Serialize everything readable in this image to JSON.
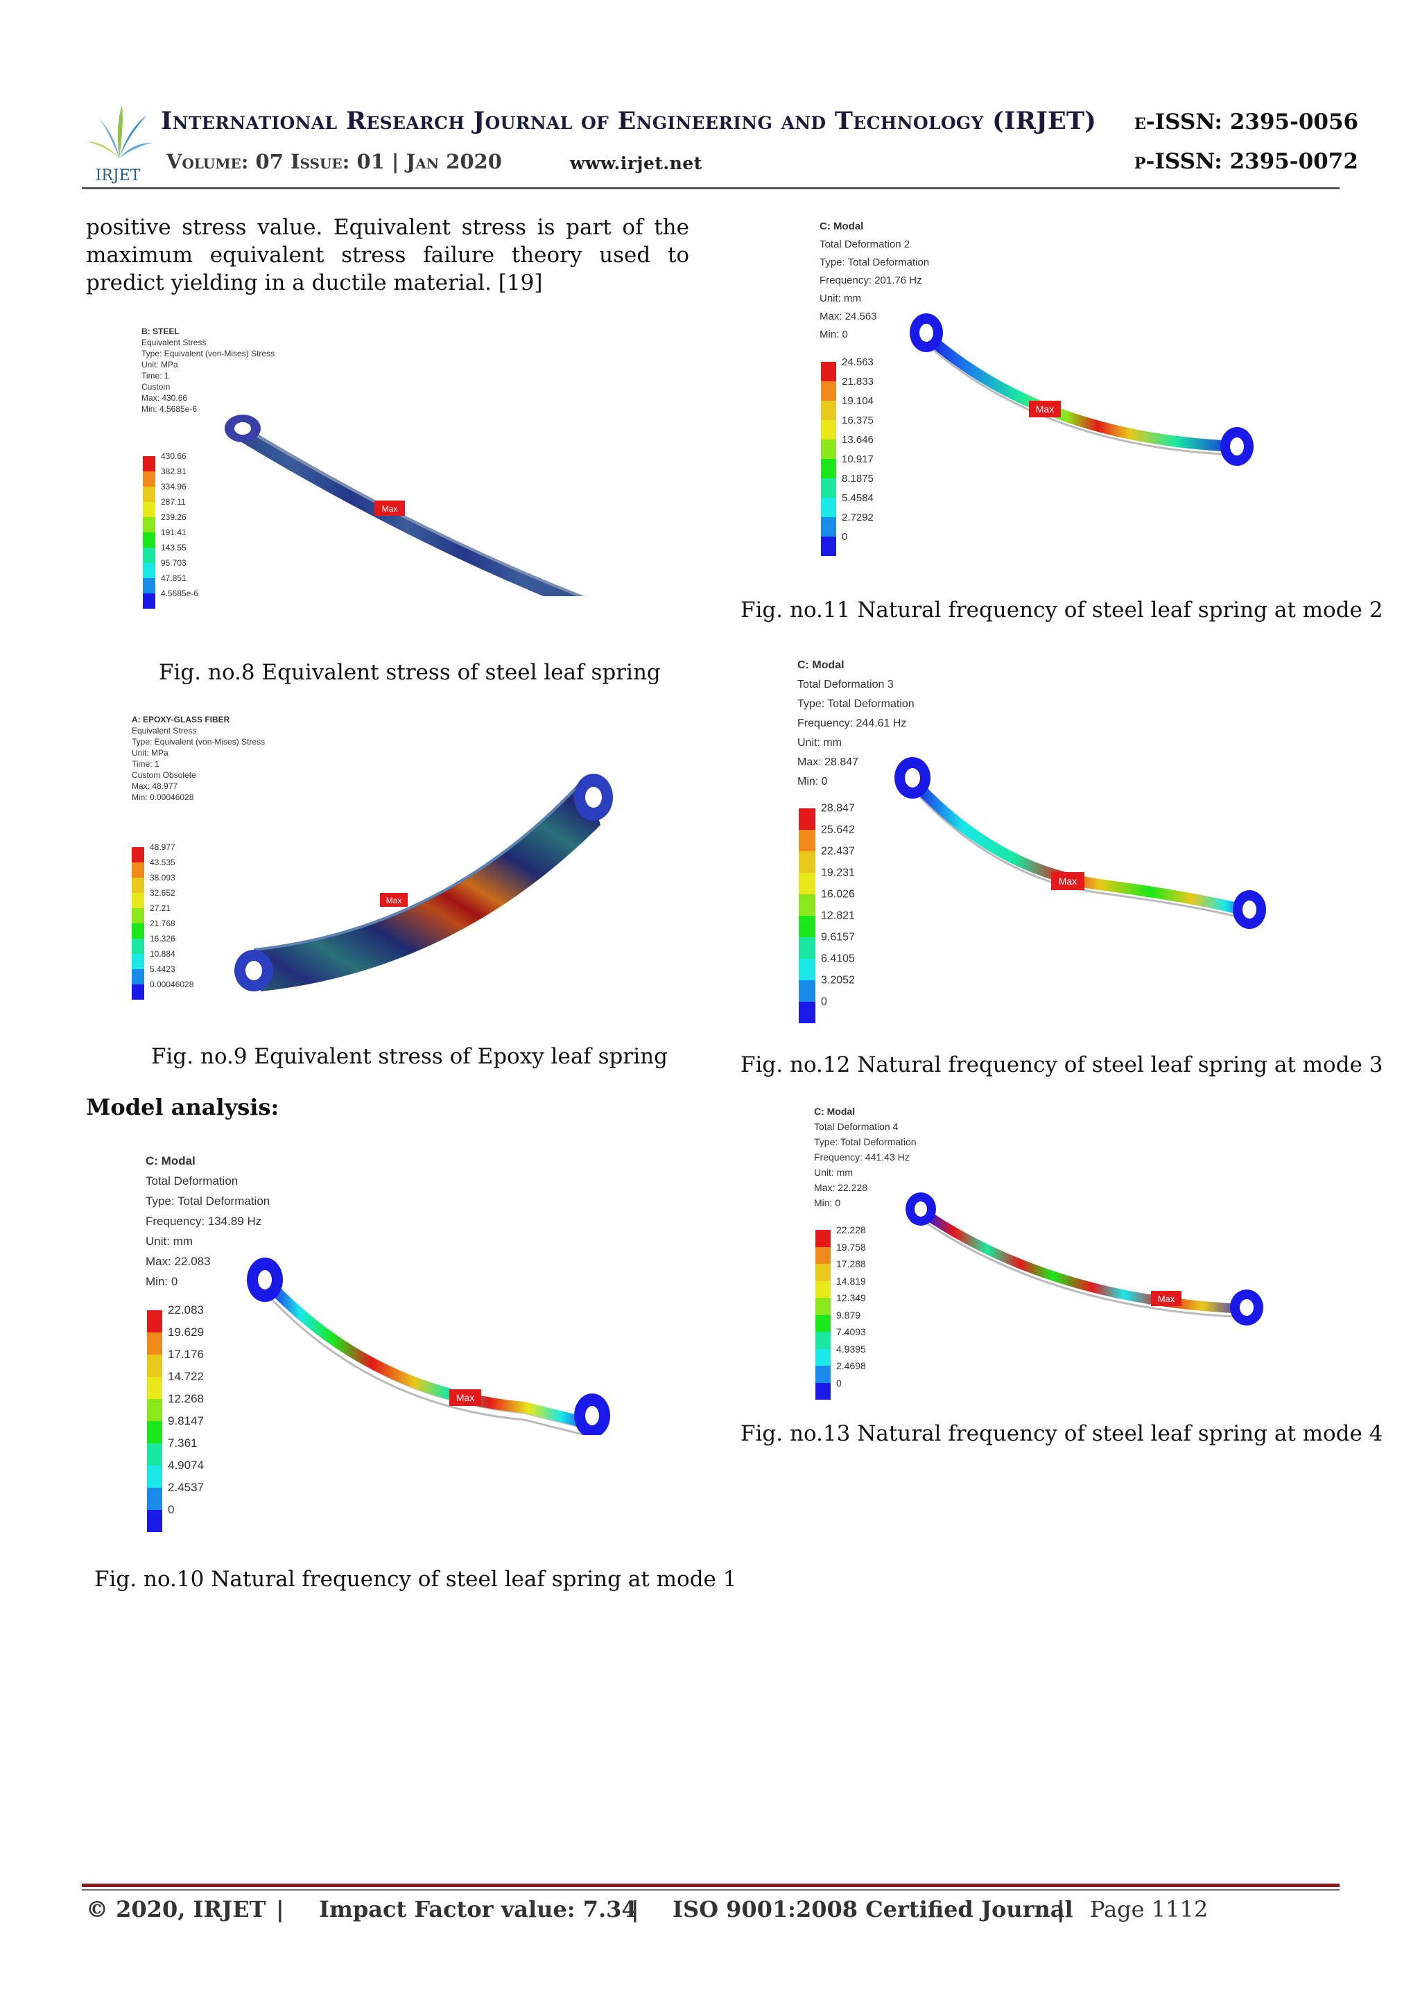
{
  "header": {
    "journal_title": "International Research Journal of Engineering and Technology (IRJET)",
    "volume_line": "Volume: 07 Issue: 01 | Jan 2020",
    "website": "www.irjet.net",
    "e_issn": "e-ISSN: 2395-0056",
    "p_issn": "p-ISSN: 2395-0072",
    "logo_text": "IRJET"
  },
  "body": {
    "paragraph": "positive stress value. Equivalent stress is part of the maximum equivalent stress failure theory used to predict yielding in a ductile material. [19]",
    "section_heading": "Model analysis:"
  },
  "figures": {
    "fig8": {
      "caption": "Fig. no.8 Equivalent stress of steel leaf spring",
      "info": [
        "B: STEEL",
        "Equivalent Stress",
        "Type: Equivalent (von-Mises) Stress",
        "Unit: MPa",
        "Time: 1",
        "Custom",
        "Max: 430.66",
        "Min: 4.5685e-6"
      ],
      "legend": [
        "430.66",
        "382.81",
        "334.96",
        "287.11",
        "239.26",
        "191.41",
        "143.55",
        "95.703",
        "47.851",
        "4.5685e-6"
      ],
      "max_label": "Max"
    },
    "fig9": {
      "caption": "Fig. no.9 Equivalent stress of Epoxy leaf spring",
      "info": [
        "A: EPOXY-GLASS FIBER",
        "Equivalent Stress",
        "Type: Equivalent (von-Mises) Stress",
        "Unit: MPa",
        "Time: 1",
        "Custom Obsolete",
        "Max: 48.977",
        "Min: 0.00046028"
      ],
      "legend": [
        "48.977",
        "43.535",
        "38.093",
        "32.652",
        "27.21",
        "21.768",
        "16.326",
        "10.884",
        "5.4423",
        "0.00046028"
      ],
      "max_label": "Max"
    },
    "fig10": {
      "caption": "Fig. no.10 Natural frequency of steel leaf spring at mode 1",
      "info": [
        "C: Modal",
        "Total Deformation",
        "Type: Total Deformation",
        "Frequency: 134.89 Hz",
        "Unit: mm",
        "Max: 22.083",
        "Min: 0"
      ],
      "legend": [
        "22.083",
        "19.629",
        "17.176",
        "14.722",
        "12.268",
        "9.8147",
        "7.361",
        "4.9074",
        "2.4537",
        "0"
      ],
      "max_label": "Max"
    },
    "fig11": {
      "caption": "Fig. no.11 Natural frequency of steel leaf spring at mode 2",
      "info": [
        "C: Modal",
        "Total Deformation 2",
        "Type: Total Deformation",
        "Frequency: 201.76 Hz",
        "Unit: mm",
        "Max: 24.563",
        "Min: 0"
      ],
      "legend": [
        "24.563",
        "21.833",
        "19.104",
        "16.375",
        "13.646",
        "10.917",
        "8.1875",
        "5.4584",
        "2.7292",
        "0"
      ],
      "max_label": "Max"
    },
    "fig12": {
      "caption": "Fig. no.12 Natural frequency of steel leaf spring at mode 3",
      "info": [
        "C: Modal",
        "Total Deformation 3",
        "Type: Total Deformation",
        "Frequency: 244.61 Hz",
        "Unit: mm",
        "Max: 28.847",
        "Min: 0"
      ],
      "legend": [
        "28.847",
        "25.642",
        "22.437",
        "19.231",
        "16.026",
        "12.821",
        "9.6157",
        "6.4105",
        "3.2052",
        "0"
      ],
      "max_label": "Max"
    },
    "fig13": {
      "caption": "Fig. no.13 Natural frequency of steel leaf spring at mode 4",
      "info": [
        "C: Modal",
        "Total Deformation 4",
        "Type: Total Deformation",
        "Frequency: 441.43 Hz",
        "Unit: mm",
        "Max: 22.228",
        "Min: 0"
      ],
      "legend": [
        "22.228",
        "19.758",
        "17.288",
        "14.819",
        "12.349",
        "9.879",
        "7.4093",
        "4.9395",
        "2.4698",
        "0"
      ],
      "max_label": "Max"
    }
  },
  "legend_colors": [
    "#e41a1a",
    "#f08a1a",
    "#e8c81a",
    "#e8e81a",
    "#8ae81a",
    "#1ae81a",
    "#1ae8a0",
    "#1ae8e8",
    "#1a8ae8",
    "#1a1ae8"
  ],
  "footer": {
    "copyright": "© 2020, IRJET",
    "impact": "Impact Factor value: 7.34",
    "iso": "ISO 9001:2008 Certified Journal",
    "page": "Page 1112",
    "sep": "|"
  }
}
